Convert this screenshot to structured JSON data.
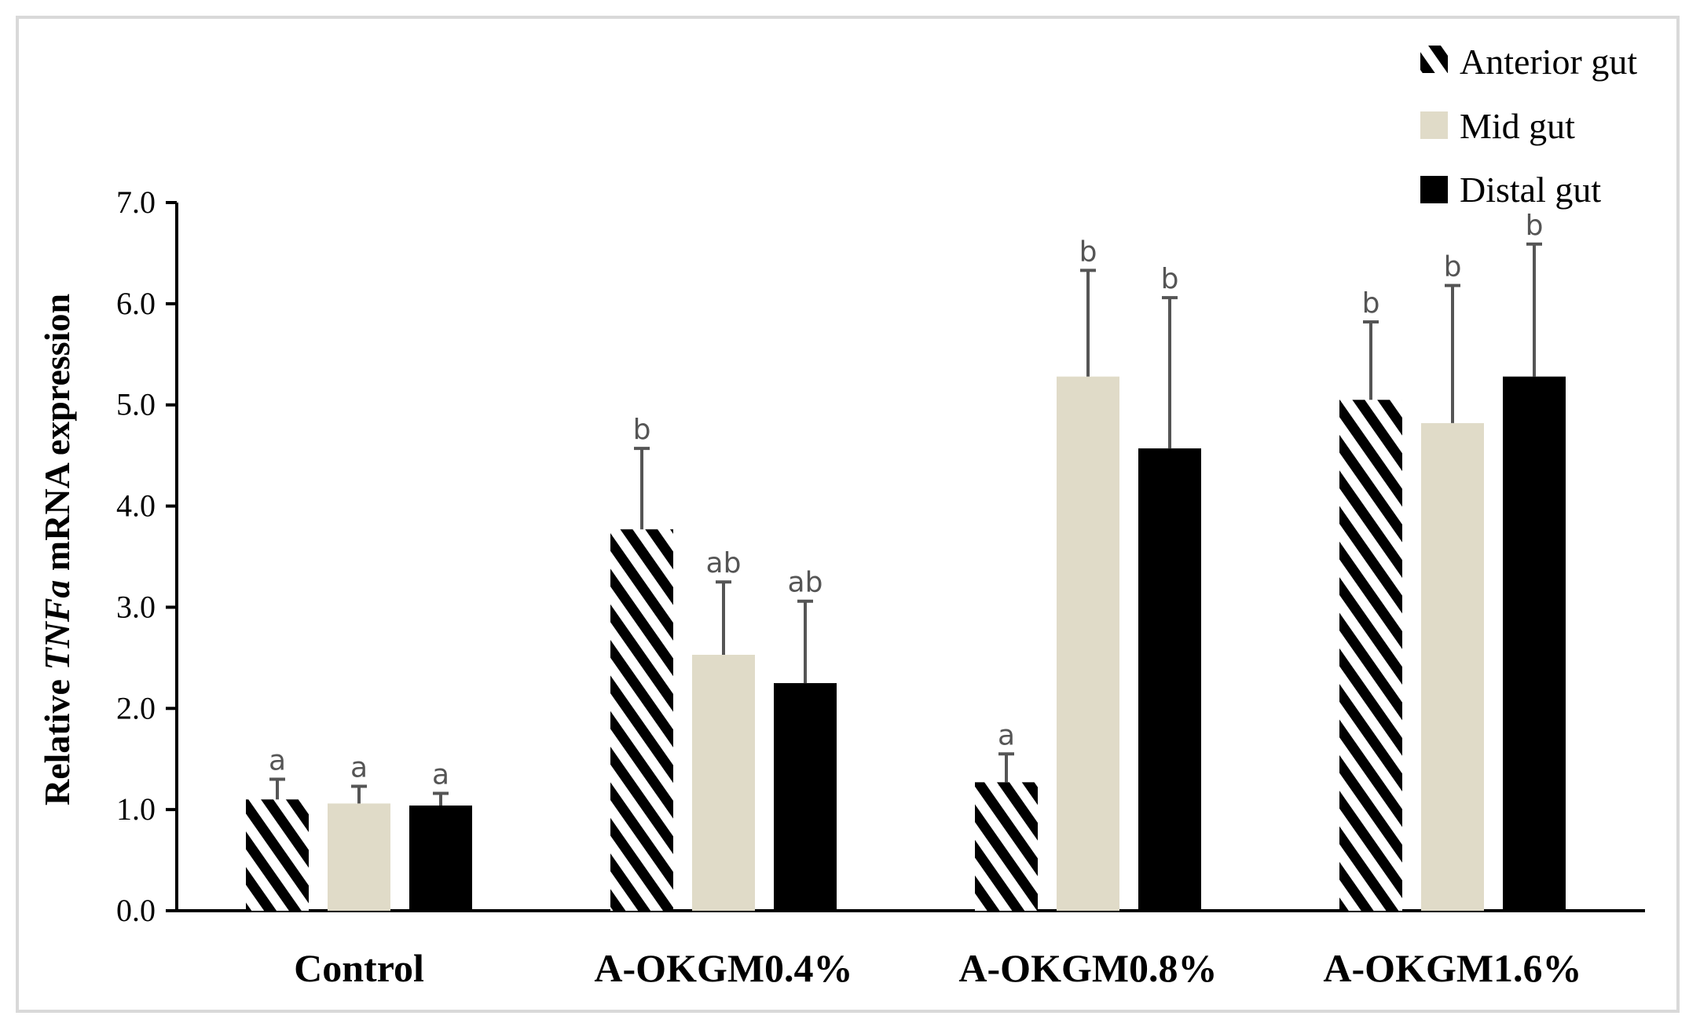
{
  "chart_data": {
    "type": "bar",
    "title": "",
    "xlabel": "",
    "ylabel": {
      "prefix": "Relative ",
      "gene": "TNFa",
      "suffix": " mRNA expression"
    },
    "ylim": [
      0,
      7
    ],
    "yticks": [
      "0.0",
      "1.0",
      "2.0",
      "3.0",
      "4.0",
      "5.0",
      "6.0",
      "7.0"
    ],
    "grid": false,
    "legend_position": "top-right",
    "categories": [
      "Control",
      "A-OKGM0.4%",
      "A-OKGM0.8%",
      "A-OKGM1.6%"
    ],
    "series": [
      {
        "name": "Anterior gut",
        "pattern": "hatched",
        "values": [
          1.1,
          3.77,
          1.27,
          5.05
        ],
        "errors": [
          0.2,
          0.8,
          0.28,
          0.77
        ],
        "labels": [
          "a",
          "b",
          "a",
          "b"
        ]
      },
      {
        "name": "Mid gut",
        "pattern": "solid",
        "color": "#e0dbc8",
        "values": [
          1.06,
          2.53,
          5.28,
          4.82
        ],
        "errors": [
          0.17,
          0.72,
          1.05,
          1.36
        ],
        "labels": [
          "a",
          "ab",
          "b",
          "b"
        ]
      },
      {
        "name": "Distal gut",
        "pattern": "solid",
        "color": "#000000",
        "values": [
          1.04,
          2.25,
          4.57,
          5.28
        ],
        "errors": [
          0.12,
          0.81,
          1.49,
          1.31
        ],
        "labels": [
          "a",
          "ab",
          "b",
          "b"
        ]
      }
    ]
  }
}
